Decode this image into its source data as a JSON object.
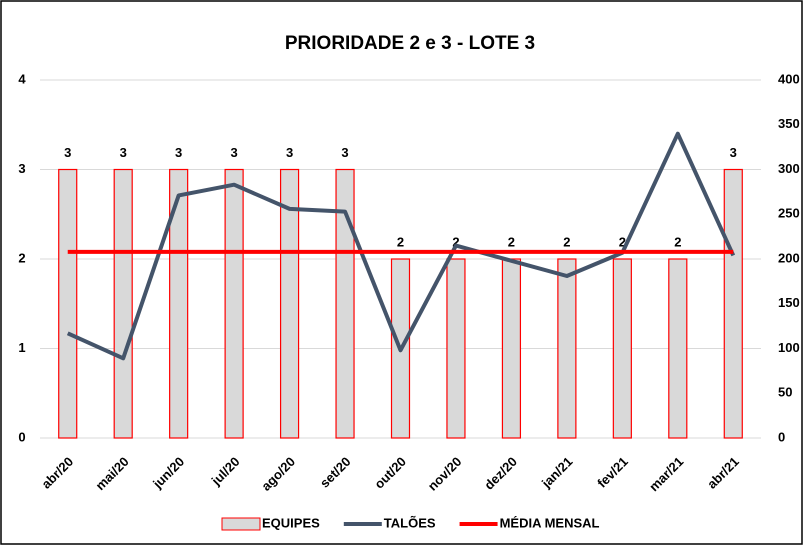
{
  "chart_data": {
    "type": "combo",
    "title": "PRIORIDADE 2 e 3 - LOTE 3",
    "categories": [
      "abr/20",
      "mai/20",
      "jun/20",
      "jul/20",
      "ago/20",
      "set/20",
      "out/20",
      "nov/20",
      "dez/20",
      "jan/21",
      "fev/21",
      "mar/21",
      "abr/21"
    ],
    "series": [
      {
        "name": "EQUIPES",
        "type": "bar",
        "color": "#d9d9d9",
        "edge": "#ff0000",
        "values": [
          3,
          3,
          3,
          3,
          3,
          3,
          2,
          2,
          2,
          2,
          2,
          2,
          3
        ]
      },
      {
        "name": "TALÕES",
        "type": "line",
        "axis": "y2",
        "color": "#44546a",
        "values": [
          117,
          89,
          271,
          283,
          256,
          253,
          98,
          215,
          198,
          181,
          207,
          340,
          204
        ]
      },
      {
        "name": "MÉDIA MENSAL",
        "type": "line",
        "axis": "y2",
        "color": "#ff0000",
        "values": [
          208,
          208,
          208,
          208,
          208,
          208,
          208,
          208,
          208,
          208,
          208,
          208,
          208
        ]
      }
    ],
    "ylim": [
      0,
      4
    ],
    "yticks": [
      0,
      1,
      2,
      3,
      4
    ],
    "y2lim": [
      0,
      400
    ],
    "y2ticks": [
      0,
      50,
      100,
      150,
      200,
      250,
      300,
      350,
      400
    ],
    "grid": true,
    "legend": "bottom"
  }
}
